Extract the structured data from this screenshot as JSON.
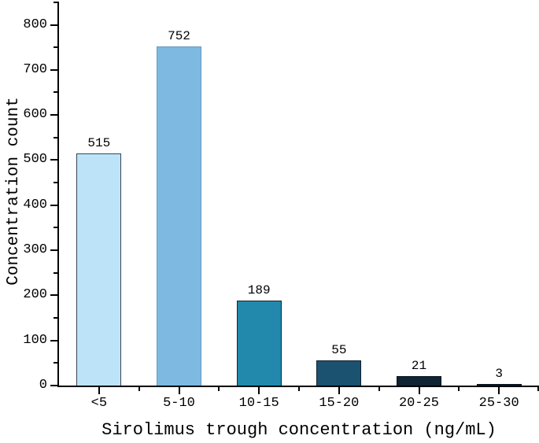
{
  "chart_data": {
    "type": "bar",
    "title": "",
    "xlabel": "Sirolimus trough concentration (ng/mL)",
    "ylabel": "Concentration count",
    "categories": [
      "<5",
      "5-10",
      "10-15",
      "15-20",
      "20-25",
      "25-30"
    ],
    "values": [
      515,
      752,
      189,
      55,
      21,
      3
    ],
    "value_labels": [
      "515",
      "752",
      "189",
      "55",
      "21",
      "3"
    ],
    "bar_colors": [
      "#bde3f9",
      "#7db9e0",
      "#2289ac",
      "#1b5270",
      "#0f2435",
      "#0c1f2f"
    ],
    "bar_border_colors": [
      "#3a4754",
      "#6699bd",
      "#14262e",
      "#0e2231",
      "#05101c",
      "#05101c"
    ],
    "yticks": [
      0,
      100,
      200,
      300,
      400,
      500,
      600,
      700,
      800
    ],
    "ytick_labels": [
      "0",
      "100",
      "200",
      "300",
      "400",
      "500",
      "600",
      "700",
      "800"
    ],
    "ylim": [
      0,
      850
    ],
    "minor_tick_step": 50,
    "grid": false,
    "legend": null,
    "axis_color": "#000000",
    "text_color": "#000000"
  }
}
